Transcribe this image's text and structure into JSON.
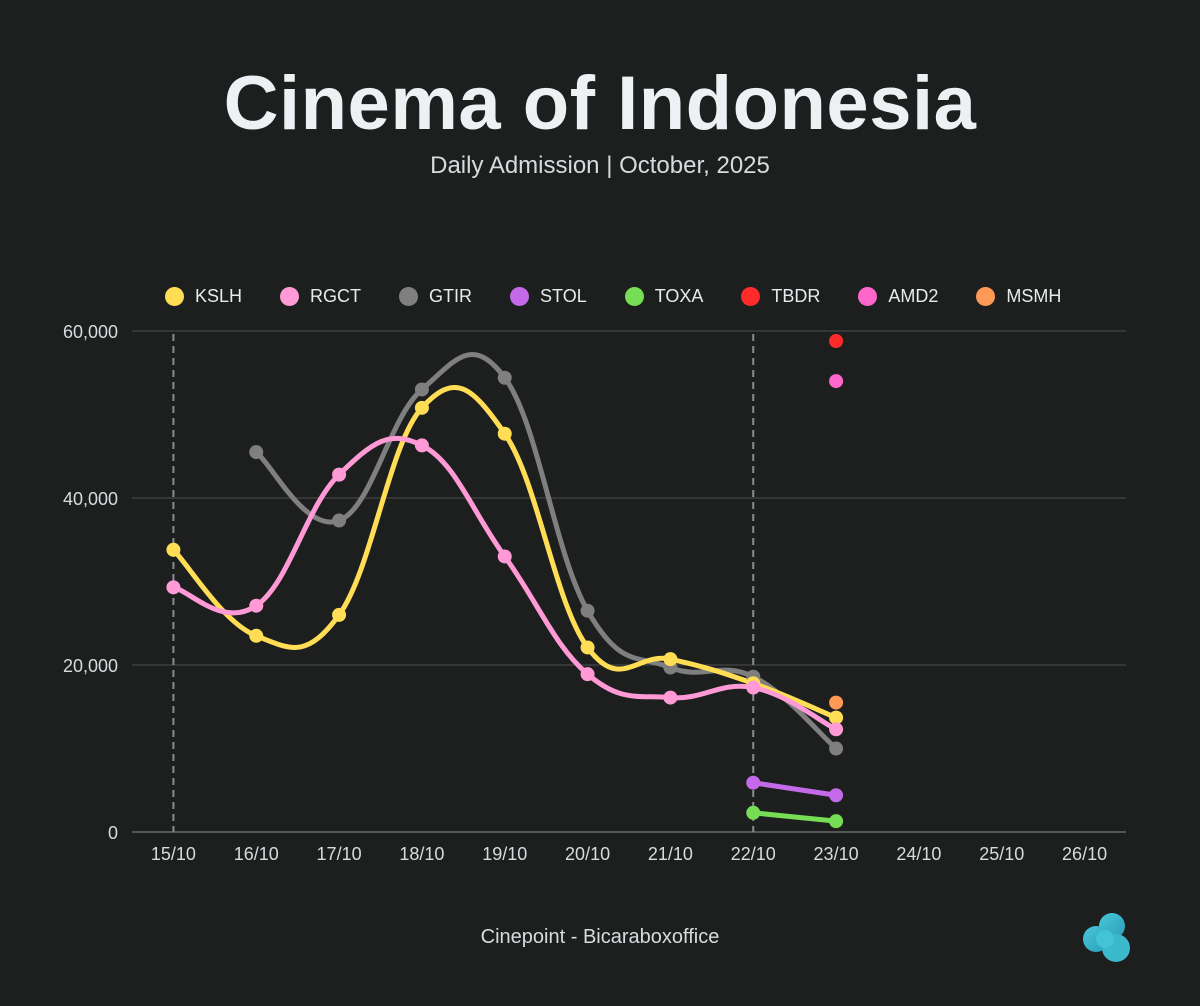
{
  "header": {
    "title": "Cinema of Indonesia",
    "subtitle": "Daily Admission | October, 2025"
  },
  "source": "Cinepoint - Bicaraboxoffice",
  "colors": {
    "background": "#1d1f1f",
    "grid": "#4a4d4f",
    "axis_text": "#d8dade"
  },
  "chart_data": {
    "type": "line",
    "title": "Cinema of Indonesia",
    "subtitle": "Daily Admission | October, 2025",
    "xlabel": "",
    "ylabel": "",
    "categories": [
      "15/10",
      "16/10",
      "17/10",
      "18/10",
      "19/10",
      "20/10",
      "21/10",
      "22/10",
      "23/10",
      "24/10",
      "25/10",
      "26/10"
    ],
    "ylim": [
      0,
      60000
    ],
    "yticks": [
      0,
      20000,
      40000,
      60000
    ],
    "ytick_labels": [
      "0",
      "20,000",
      "40,000",
      "60,000"
    ],
    "grid": true,
    "legend_position": "top",
    "reference_lines": [
      "15/10",
      "22/10"
    ],
    "series": [
      {
        "name": "KSLH",
        "color": "#ffdd55",
        "values": [
          33800,
          23500,
          26000,
          50800,
          47700,
          22100,
          20700,
          17800,
          13700,
          null,
          null,
          null
        ]
      },
      {
        "name": "RGCT",
        "color": "#ff9ad6",
        "values": [
          29300,
          27100,
          42800,
          46300,
          33000,
          18900,
          16100,
          17300,
          12300,
          null,
          null,
          null
        ]
      },
      {
        "name": "GTIR",
        "color": "#7f7f7f",
        "values": [
          null,
          45500,
          37300,
          53000,
          54400,
          26500,
          19700,
          18600,
          10000,
          null,
          null,
          null
        ]
      },
      {
        "name": "STOL",
        "color": "#c46ae8",
        "values": [
          null,
          null,
          null,
          null,
          null,
          null,
          null,
          5900,
          4400,
          null,
          null,
          null
        ]
      },
      {
        "name": "TOXA",
        "color": "#77dd55",
        "values": [
          null,
          null,
          null,
          null,
          null,
          null,
          null,
          2300,
          1300,
          null,
          null,
          null
        ]
      },
      {
        "name": "TBDR",
        "color": "#ff2a2a",
        "values": [
          null,
          null,
          null,
          null,
          null,
          null,
          null,
          null,
          58800,
          null,
          null,
          null
        ]
      },
      {
        "name": "AMD2",
        "color": "#ff66cc",
        "values": [
          null,
          null,
          null,
          null,
          null,
          null,
          null,
          null,
          54000,
          null,
          null,
          null
        ]
      },
      {
        "name": "MSMH",
        "color": "#ff9955",
        "values": [
          null,
          null,
          null,
          null,
          null,
          null,
          null,
          null,
          15500,
          null,
          null,
          null
        ]
      }
    ]
  }
}
